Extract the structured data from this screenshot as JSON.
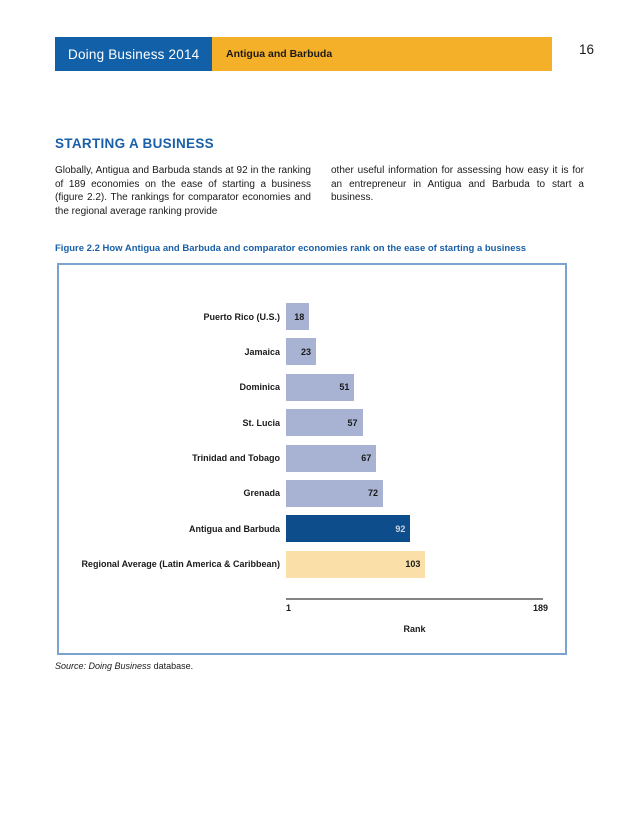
{
  "header": {
    "report_title": "Doing Business 2014",
    "economy": "Antigua and Barbuda",
    "page_number": "16"
  },
  "section": {
    "title": "STARTING A BUSINESS",
    "paragraph_col1": "Globally, Antigua and Barbuda stands at 92 in the ranking of 189 economies on the ease of starting a business (figure 2.2). The rankings for comparator economies and the regional average ranking provide",
    "paragraph_col2": "other useful information for assessing how easy it is for an entrepreneur in Antigua and Barbuda to start a business."
  },
  "figure": {
    "caption": "Figure 2.2 How Antigua and Barbuda and comparator economies rank on the ease of starting a business",
    "source_italic": "Source: Doing Business",
    "source_regular": " database."
  },
  "chart_data": {
    "type": "bar",
    "orientation": "horizontal",
    "xlabel": "Rank",
    "xlim": [
      1,
      189
    ],
    "x_tick_labels": [
      "1",
      "189"
    ],
    "grid": false,
    "value_label_position": "inside-end",
    "categories": [
      "Puerto Rico (U.S.)",
      "Jamaica",
      "Dominica",
      "St. Lucia",
      "Trinidad and Tobago",
      "Grenada",
      "Antigua and Barbuda",
      "Regional Average (Latin America & Caribbean)"
    ],
    "values": [
      18,
      23,
      51,
      57,
      67,
      72,
      92,
      103
    ],
    "series": [
      {
        "category": "Puerto Rico (U.S.)",
        "value": 18,
        "bar_color": "#a8b2d3",
        "value_color": "#1a1a1a"
      },
      {
        "category": "Jamaica",
        "value": 23,
        "bar_color": "#a8b2d3",
        "value_color": "#1a1a1a"
      },
      {
        "category": "Dominica",
        "value": 51,
        "bar_color": "#a8b2d3",
        "value_color": "#1a1a1a"
      },
      {
        "category": "St. Lucia",
        "value": 57,
        "bar_color": "#a8b2d3",
        "value_color": "#1a1a1a"
      },
      {
        "category": "Trinidad and Tobago",
        "value": 67,
        "bar_color": "#a8b2d3",
        "value_color": "#1a1a1a"
      },
      {
        "category": "Grenada",
        "value": 72,
        "bar_color": "#a8b2d3",
        "value_color": "#1a1a1a"
      },
      {
        "category": "Antigua and Barbuda",
        "value": 92,
        "bar_color": "#0e4d8c",
        "value_color": "#ccd3de",
        "highlight": true
      },
      {
        "category": "Regional Average (Latin America & Caribbean)",
        "value": 103,
        "bar_color": "#fbdfa8",
        "value_color": "#1a1a1a"
      }
    ]
  },
  "colors": {
    "header_blue": "#1261a8",
    "header_gold": "#f5b02a",
    "accent_blue": "#1a60a8",
    "comparator_bar": "#a8b2d3",
    "highlight_bar": "#0e4d8c",
    "regional_average_bar": "#fbdfa8",
    "figure_border": "#7ca3cf",
    "axis_line": "#848484"
  }
}
